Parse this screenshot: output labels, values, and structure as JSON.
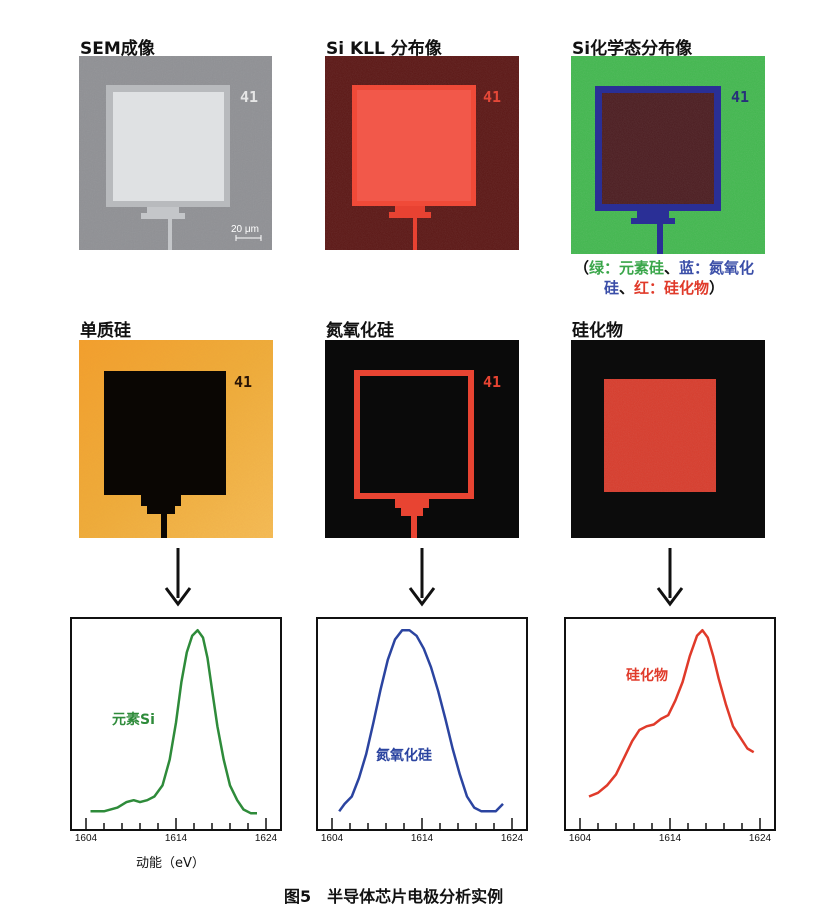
{
  "panels": [
    {
      "title": "SEM成像",
      "chip_no": "41",
      "scalebar": "20 μm"
    },
    {
      "title": "Si KLL 分布像",
      "chip_no": "41"
    },
    {
      "title": "Si化学态分布像",
      "chip_no": "41"
    },
    {
      "title": "单质硅",
      "chip_no": "41"
    },
    {
      "title": "氮氧化硅",
      "chip_no": "41"
    },
    {
      "title": "硅化物"
    }
  ],
  "legend": {
    "open": "（",
    "green": "绿：元素硅",
    "sep1": "、",
    "blue1": "蓝：氮氧化",
    "blue2": "硅",
    "sep2": "、",
    "red": "红：硅化物",
    "close": "）"
  },
  "colors": {
    "green": "#2e8b3a",
    "blue": "#2b44a0",
    "red": "#e03a2a"
  },
  "xlabel": "动能（eV）",
  "caption": "图5　半导体芯片电极分析实例",
  "chart_data": [
    {
      "type": "line",
      "series": [
        {
          "name": "元素Si",
          "color": "#2e8b3a",
          "x": [
            1604.5,
            1606,
            1607.5,
            1608.5,
            1609.3,
            1610,
            1610.8,
            1611.6,
            1612.5,
            1613.3,
            1614,
            1614.6,
            1615.2,
            1615.8,
            1616.4,
            1617,
            1617.5,
            1618,
            1618.6,
            1619.3,
            1620,
            1620.8,
            1621.5,
            1622.3,
            1623
          ],
          "y": [
            0.02,
            0.02,
            0.04,
            0.07,
            0.08,
            0.07,
            0.08,
            0.1,
            0.16,
            0.3,
            0.5,
            0.72,
            0.88,
            0.97,
            1.0,
            0.96,
            0.85,
            0.68,
            0.48,
            0.3,
            0.16,
            0.08,
            0.03,
            0.01,
            0.01
          ]
        }
      ],
      "xlim": [
        1604,
        1624
      ],
      "ylim": [
        0,
        1.05
      ],
      "xticks": [
        "1604",
        "1614",
        "1624"
      ]
    },
    {
      "type": "line",
      "series": [
        {
          "name": "氮氧化硅",
          "color": "#2b44a0",
          "x": [
            1604.8,
            1605.4,
            1606.2,
            1607,
            1607.8,
            1608.6,
            1609.4,
            1610.2,
            1611,
            1611.8,
            1612.6,
            1613.4,
            1614.2,
            1615,
            1615.8,
            1616.6,
            1617.4,
            1618.2,
            1619,
            1619.8,
            1620.6,
            1621.4,
            1622.2,
            1623
          ],
          "y": [
            0.02,
            0.06,
            0.1,
            0.2,
            0.33,
            0.5,
            0.68,
            0.84,
            0.95,
            1.0,
            1.0,
            0.97,
            0.9,
            0.8,
            0.67,
            0.52,
            0.36,
            0.22,
            0.1,
            0.04,
            0.02,
            0.02,
            0.02,
            0.06
          ]
        }
      ],
      "xlim": [
        1604,
        1624
      ],
      "ylim": [
        0,
        1.05
      ],
      "xticks": [
        "1604",
        "1614",
        "1624"
      ]
    },
    {
      "type": "line",
      "series": [
        {
          "name": "硅化物",
          "color": "#e03a2a",
          "x": [
            1605,
            1606,
            1607,
            1608,
            1609,
            1609.8,
            1610.6,
            1611.4,
            1612.2,
            1613,
            1613.8,
            1614.6,
            1615.4,
            1616.2,
            1617,
            1617.6,
            1618.2,
            1618.8,
            1619.4,
            1620.2,
            1621,
            1621.8,
            1622.6,
            1623.3
          ],
          "y": [
            0.1,
            0.12,
            0.16,
            0.22,
            0.32,
            0.4,
            0.46,
            0.48,
            0.49,
            0.52,
            0.54,
            0.62,
            0.72,
            0.86,
            0.97,
            1.0,
            0.96,
            0.86,
            0.74,
            0.6,
            0.48,
            0.42,
            0.36,
            0.34
          ]
        }
      ],
      "xlim": [
        1604,
        1624
      ],
      "ylim": [
        0,
        1.05
      ],
      "xticks": [
        "1604",
        "1614",
        "1624"
      ]
    }
  ]
}
